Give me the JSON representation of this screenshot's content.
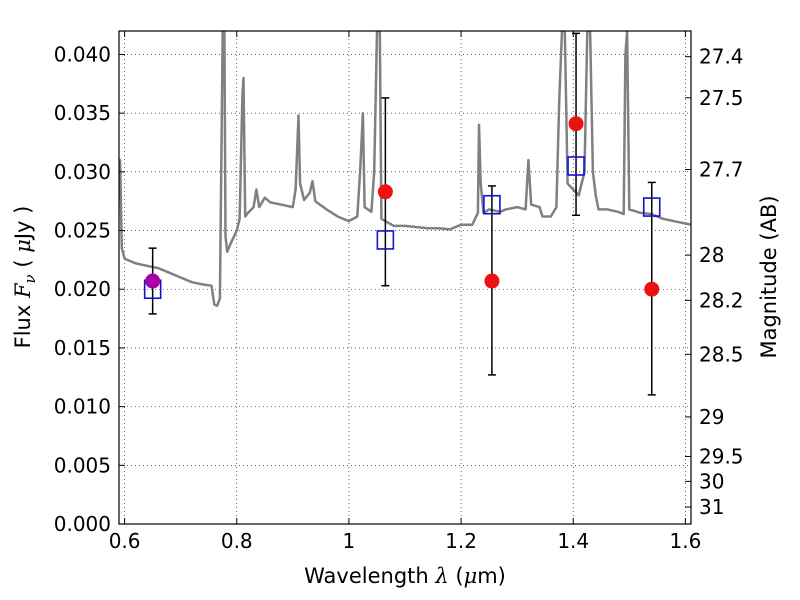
{
  "chart_data": {
    "type": "scatter",
    "xlabel": {
      "prefix": "Wavelength  ",
      "symbol": "λ",
      "unit_open": " (",
      "unit_symbol": "μ",
      "unit_rest": "m)"
    },
    "ylabel": {
      "prefix": "Flux  ",
      "symbol": "F",
      "subscript": "ν",
      "unit_open": "  ( ",
      "unit_symbol": "μ",
      "unit_rest": "Jy )"
    },
    "y2label": "Magnitude (AB)",
    "xlim": [
      0.59,
      1.61
    ],
    "ylim": [
      0.0,
      0.042
    ],
    "grid": true,
    "x_ticks": [
      {
        "value": 0.6,
        "label": "0.6"
      },
      {
        "value": 0.8,
        "label": "0.8"
      },
      {
        "value": 1.0,
        "label": "1"
      },
      {
        "value": 1.2,
        "label": "1.2"
      },
      {
        "value": 1.4,
        "label": "1.4"
      },
      {
        "value": 1.6,
        "label": "1.6"
      }
    ],
    "y_ticks": [
      {
        "value": 0.0,
        "label": "0.000"
      },
      {
        "value": 0.005,
        "label": "0.005"
      },
      {
        "value": 0.01,
        "label": "0.010"
      },
      {
        "value": 0.015,
        "label": "0.015"
      },
      {
        "value": 0.02,
        "label": "0.020"
      },
      {
        "value": 0.025,
        "label": "0.025"
      },
      {
        "value": 0.03,
        "label": "0.030"
      },
      {
        "value": 0.035,
        "label": "0.035"
      },
      {
        "value": 0.04,
        "label": "0.040"
      }
    ],
    "mag_ticks": [
      {
        "value": 27.4,
        "label": "27.4"
      },
      {
        "value": 27.5,
        "label": "27.5"
      },
      {
        "value": 27.7,
        "label": "27.7"
      },
      {
        "value": 28.0,
        "label": "28"
      },
      {
        "value": 28.2,
        "label": "28.2"
      },
      {
        "value": 28.5,
        "label": "28.5"
      },
      {
        "value": 29.0,
        "label": "29"
      },
      {
        "value": 29.5,
        "label": "29.5"
      },
      {
        "value": 30.0,
        "label": "30"
      },
      {
        "value": 31.0,
        "label": "31"
      }
    ],
    "series": [
      {
        "kind": "model_spectrum",
        "color": "#808080",
        "points": [
          [
            0.59,
            0.03
          ],
          [
            0.592,
            0.031
          ],
          [
            0.595,
            0.0235
          ],
          [
            0.6,
            0.0226
          ],
          [
            0.62,
            0.0222
          ],
          [
            0.64,
            0.022
          ],
          [
            0.66,
            0.0218
          ],
          [
            0.68,
            0.0214
          ],
          [
            0.7,
            0.021
          ],
          [
            0.72,
            0.0206
          ],
          [
            0.74,
            0.0204
          ],
          [
            0.755,
            0.0203
          ],
          [
            0.76,
            0.0187
          ],
          [
            0.765,
            0.0186
          ],
          [
            0.77,
            0.0192
          ],
          [
            0.772,
            0.029
          ],
          [
            0.775,
            0.042
          ],
          [
            0.778,
            0.042
          ],
          [
            0.78,
            0.0245
          ],
          [
            0.783,
            0.0232
          ],
          [
            0.79,
            0.024
          ],
          [
            0.8,
            0.025
          ],
          [
            0.805,
            0.026
          ],
          [
            0.81,
            0.0365
          ],
          [
            0.812,
            0.038
          ],
          [
            0.815,
            0.0262
          ],
          [
            0.82,
            0.0265
          ],
          [
            0.83,
            0.027
          ],
          [
            0.835,
            0.0285
          ],
          [
            0.84,
            0.027
          ],
          [
            0.85,
            0.0278
          ],
          [
            0.86,
            0.0274
          ],
          [
            0.88,
            0.0272
          ],
          [
            0.9,
            0.027
          ],
          [
            0.905,
            0.0285
          ],
          [
            0.91,
            0.0348
          ],
          [
            0.913,
            0.029
          ],
          [
            0.92,
            0.0276
          ],
          [
            0.93,
            0.0282
          ],
          [
            0.935,
            0.0292
          ],
          [
            0.94,
            0.0275
          ],
          [
            0.96,
            0.0268
          ],
          [
            0.98,
            0.0262
          ],
          [
            1.0,
            0.0258
          ],
          [
            1.015,
            0.0262
          ],
          [
            1.02,
            0.03
          ],
          [
            1.025,
            0.035
          ],
          [
            1.028,
            0.027
          ],
          [
            1.04,
            0.0266
          ],
          [
            1.045,
            0.03
          ],
          [
            1.05,
            0.042
          ],
          [
            1.055,
            0.042
          ],
          [
            1.058,
            0.026
          ],
          [
            1.08,
            0.0254
          ],
          [
            1.1,
            0.0254
          ],
          [
            1.12,
            0.0253
          ],
          [
            1.14,
            0.0252
          ],
          [
            1.16,
            0.0252
          ],
          [
            1.18,
            0.0251
          ],
          [
            1.2,
            0.0255
          ],
          [
            1.22,
            0.0255
          ],
          [
            1.23,
            0.0265
          ],
          [
            1.232,
            0.034
          ],
          [
            1.235,
            0.029
          ],
          [
            1.24,
            0.0265
          ],
          [
            1.25,
            0.0268
          ],
          [
            1.27,
            0.0266
          ],
          [
            1.28,
            0.0268
          ],
          [
            1.3,
            0.027
          ],
          [
            1.315,
            0.0268
          ],
          [
            1.32,
            0.031
          ],
          [
            1.325,
            0.0272
          ],
          [
            1.34,
            0.027
          ],
          [
            1.345,
            0.0262
          ],
          [
            1.36,
            0.0262
          ],
          [
            1.37,
            0.027
          ],
          [
            1.375,
            0.036
          ],
          [
            1.38,
            0.042
          ],
          [
            1.385,
            0.042
          ],
          [
            1.39,
            0.029
          ],
          [
            1.4,
            0.0285
          ],
          [
            1.41,
            0.028
          ],
          [
            1.415,
            0.029
          ],
          [
            1.42,
            0.03
          ],
          [
            1.425,
            0.042
          ],
          [
            1.43,
            0.042
          ],
          [
            1.435,
            0.03
          ],
          [
            1.44,
            0.028
          ],
          [
            1.445,
            0.0268
          ],
          [
            1.46,
            0.0268
          ],
          [
            1.48,
            0.0266
          ],
          [
            1.49,
            0.0264
          ],
          [
            1.493,
            0.04
          ],
          [
            1.496,
            0.042
          ],
          [
            1.5,
            0.0268
          ],
          [
            1.52,
            0.0265
          ],
          [
            1.54,
            0.0264
          ],
          [
            1.56,
            0.026
          ],
          [
            1.58,
            0.0258
          ],
          [
            1.6,
            0.0256
          ],
          [
            1.61,
            0.0255
          ]
        ]
      },
      {
        "kind": "observed_flux",
        "marker": "circle",
        "color": "#ee1111",
        "points": [
          {
            "x": 1.065,
            "y": 0.0283,
            "yerr_low": 0.0203,
            "yerr_high": 0.0363
          },
          {
            "x": 1.255,
            "y": 0.0207,
            "yerr_low": 0.0127,
            "yerr_high": 0.0288
          },
          {
            "x": 1.405,
            "y": 0.0341,
            "yerr_low": 0.0263,
            "yerr_high": 0.0418
          },
          {
            "x": 1.54,
            "y": 0.02,
            "yerr_low": 0.011,
            "yerr_high": 0.0291
          }
        ]
      },
      {
        "kind": "observed_flux_first_band",
        "marker": "circle",
        "color": "#aa00aa",
        "points": [
          {
            "x": 0.65,
            "y": 0.0207,
            "yerr_low": 0.0179,
            "yerr_high": 0.0235
          }
        ]
      },
      {
        "kind": "model_bandpass",
        "marker": "square",
        "color": "#1010dd",
        "points": [
          {
            "x": 0.65,
            "y": 0.02
          },
          {
            "x": 1.065,
            "y": 0.0242
          },
          {
            "x": 1.255,
            "y": 0.0272
          },
          {
            "x": 1.405,
            "y": 0.0305
          },
          {
            "x": 1.54,
            "y": 0.027
          }
        ]
      }
    ]
  }
}
